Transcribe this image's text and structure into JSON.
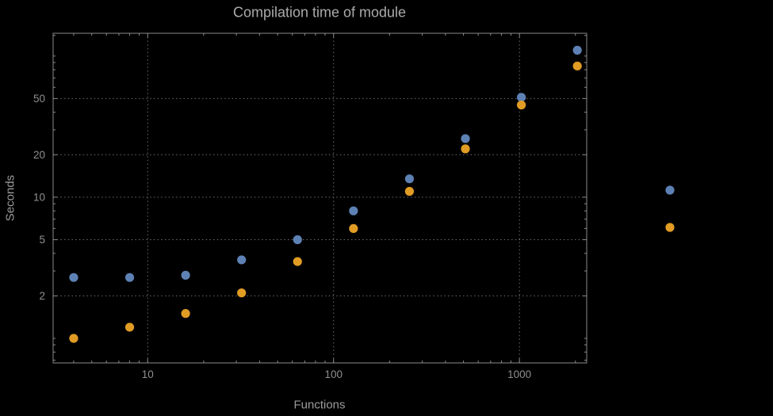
{
  "chart_data": {
    "type": "scatter",
    "title": "Compilation time of module",
    "xlabel": "Functions",
    "ylabel": "Seconds",
    "x_scale": "log",
    "y_scale": "log",
    "xlim": [
      3.1,
      2300
    ],
    "ylim": [
      0.67,
      145
    ],
    "grid": true,
    "x_ticks": [
      10,
      100,
      1000
    ],
    "x_tick_labels": [
      "10",
      "100",
      "1000"
    ],
    "y_ticks": [
      2,
      5,
      10,
      20,
      50
    ],
    "y_tick_labels": [
      "2",
      "5",
      "10",
      "20",
      "50"
    ],
    "x_minor_ticks": [
      4,
      5,
      6,
      7,
      8,
      9,
      20,
      30,
      40,
      50,
      60,
      70,
      80,
      90,
      200,
      300,
      400,
      500,
      600,
      700,
      800,
      900,
      2000
    ],
    "y_minor_ticks": [
      0.7,
      0.8,
      0.9,
      1,
      3,
      4,
      6,
      7,
      8,
      9,
      30,
      40,
      60,
      70,
      80,
      90,
      100,
      140
    ],
    "x": [
      4,
      8,
      16,
      32,
      64,
      128,
      256,
      512,
      1024,
      2048
    ],
    "series": [
      {
        "name": "blue-series",
        "color": "#5e81b5",
        "values": [
          2.7,
          2.7,
          2.8,
          3.6,
          5.0,
          8.0,
          13.5,
          26,
          51,
          110
        ]
      },
      {
        "name": "orange-series",
        "color": "#e19c24",
        "values": [
          1.0,
          1.2,
          1.5,
          2.1,
          3.5,
          6.0,
          11,
          22,
          45,
          85
        ]
      }
    ],
    "legend": {
      "position": "right-outside",
      "markers": [
        {
          "name": "blue-series-marker",
          "color": "#5e81b5"
        },
        {
          "name": "orange-series-marker",
          "color": "#e19c24"
        }
      ]
    }
  },
  "style_colors": {
    "background": "#000000",
    "frame": "#8a8a8a",
    "grid": "#6e6e6e",
    "tick_label": "#8f8f8f",
    "title": "#ababab",
    "axis_label": "#9b9b9b"
  }
}
